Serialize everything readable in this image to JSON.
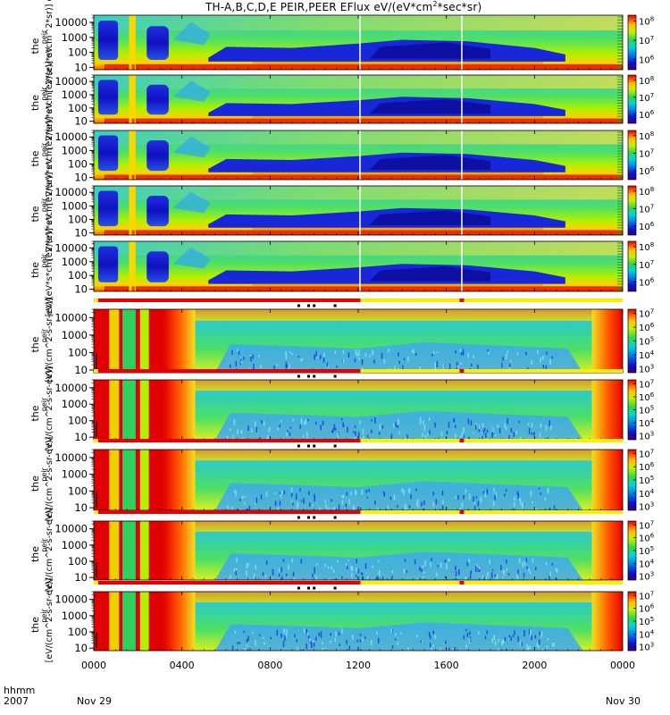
{
  "title_parts": {
    "main": "TH-A,B,C,D,E PEIR,PEER EFlux eV/(eV*cm",
    "sup": "2",
    "tail": "*sec*sr)"
  },
  "panel_ylabel": "the",
  "panel_ylabel_sub": "peir",
  "ylabel_units_ion": "[eV/(eV*s*cm^2*sr)] eV",
  "ylabel_units_elec": "[eV/(cm^2-s-sr-eV)]",
  "bottom_axis": {
    "row1_label": "hhmm",
    "row2_label": "2007",
    "date_start": "Nov 29",
    "date_end": "Nov 30"
  },
  "colors": {
    "background": "#ffffff",
    "mode_bar_yellow": "#f8f000",
    "mode_bar_red": "#e80000",
    "marker": "#000000"
  },
  "chart_data": {
    "type": "heatmap",
    "title": "TH-A,B,C,D,E PEIR,PEER EFlux eV/(eV*cm^2*sec*sr)",
    "x_axis": {
      "label": "hhmm",
      "range_hours": [
        0,
        24
      ],
      "tick_hours": [
        0,
        4,
        8,
        12,
        16,
        20,
        24
      ],
      "tick_labels": [
        "0000",
        "0400",
        "0800",
        "1200",
        "1600",
        "2000",
        "0000"
      ]
    },
    "y_axis": {
      "scale": "log",
      "range": [
        7,
        30000
      ],
      "tick_values": [
        10,
        100,
        1000,
        10000
      ],
      "tick_labels": [
        "10",
        "100",
        "1000",
        "10000"
      ],
      "unit": "eV"
    },
    "ion_panels": {
      "count": 5,
      "colorbar": {
        "scale": "log",
        "range": [
          300000,
          200000000
        ],
        "tick_exponents": [
          6,
          7,
          8
        ],
        "tick_labels": [
          "10",
          "10",
          "10"
        ]
      },
      "time_gaps_hours": [
        12.08,
        16.7
      ]
    },
    "electron_panels": {
      "count": 5,
      "colorbar": {
        "scale": "log",
        "range": [
          500,
          20000000
        ],
        "tick_exponents": [
          3,
          4,
          5,
          6,
          7
        ],
        "tick_labels": [
          "10",
          "10",
          "10",
          "10",
          "10"
        ]
      },
      "mode_bar": {
        "red_intervals_hours": [
          [
            0.2,
            12.1
          ],
          [
            16.6,
            16.8
          ]
        ],
        "marker_hours": [
          9.3,
          9.75,
          10.0,
          10.95
        ]
      }
    }
  }
}
